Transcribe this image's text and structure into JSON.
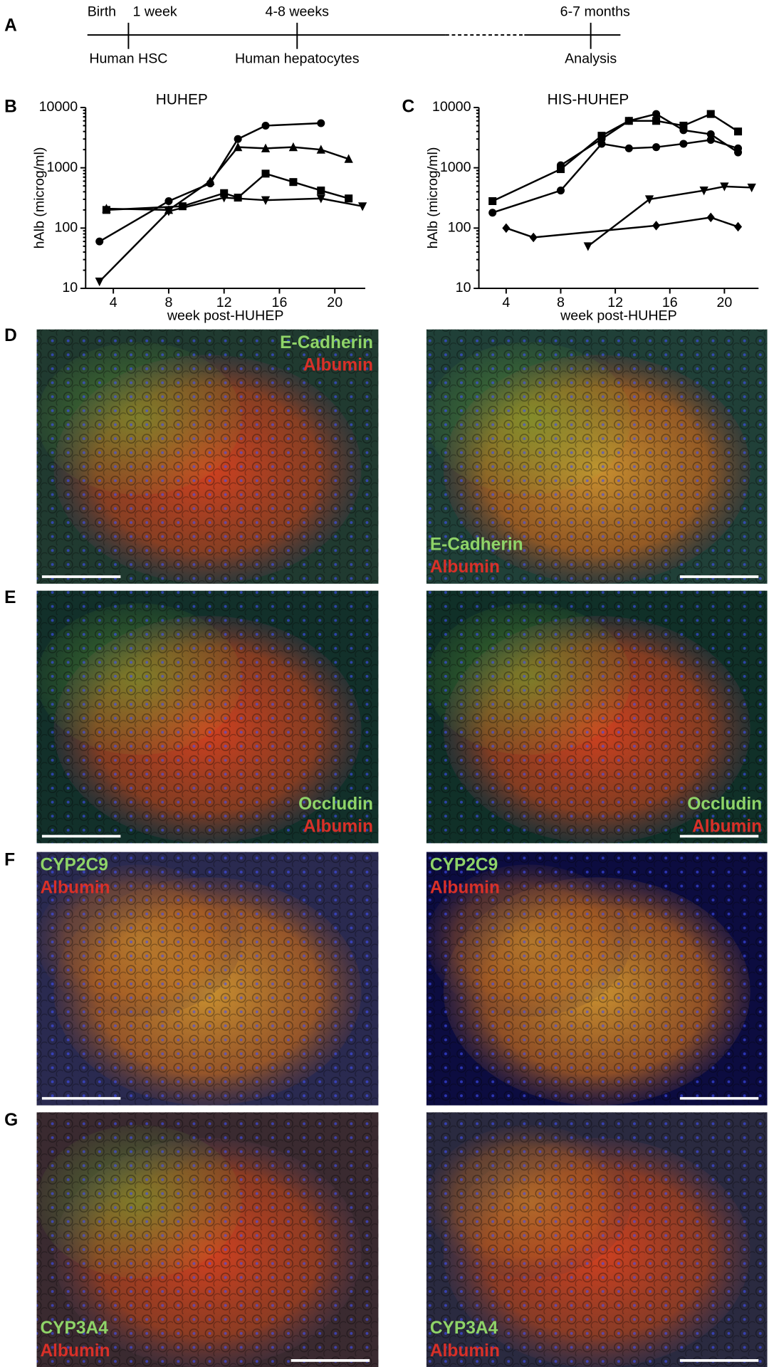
{
  "panel_labels": [
    "A",
    "B",
    "C",
    "D",
    "E",
    "F",
    "G"
  ],
  "timeline": {
    "above": [
      "Birth",
      "1 week",
      "4-8 weeks",
      "6-7 months"
    ],
    "below": [
      "Human HSC",
      "Human hepatocytes",
      "Analysis"
    ]
  },
  "chart_data": [
    {
      "type": "line",
      "title": "HUHEP",
      "x_label": "week post-HUHEP",
      "y_label": "hAlb (microg/ml)",
      "log_y": true,
      "xlim": [
        2,
        22.2
      ],
      "xticks": [
        4,
        8,
        12,
        16,
        20
      ],
      "ylim": [
        10,
        10000
      ],
      "yticks": [
        10,
        100,
        1000,
        10000
      ],
      "color": "#000000",
      "series": [
        {
          "marker": "circle",
          "x": [
            3,
            8,
            11,
            13,
            15,
            19
          ],
          "values": [
            60,
            280,
            550,
            3000,
            5000,
            5500
          ]
        },
        {
          "marker": "triangle",
          "x": [
            3.5,
            8,
            11,
            13,
            15,
            17,
            19,
            21
          ],
          "values": [
            210,
            200,
            600,
            2200,
            2100,
            2200,
            2000,
            1400
          ]
        },
        {
          "marker": "square",
          "x": [
            3.5,
            9,
            12,
            13,
            15,
            17,
            19,
            21
          ],
          "values": [
            200,
            230,
            380,
            320,
            800,
            580,
            420,
            310
          ]
        },
        {
          "marker": "triangle-down",
          "x": [
            3,
            8,
            12,
            15,
            19,
            22
          ],
          "values": [
            13,
            190,
            320,
            290,
            310,
            230
          ]
        }
      ]
    },
    {
      "type": "line",
      "title": "HIS-HUHEP",
      "x_label": "week post-HUHEP",
      "y_label": "hAlb (microg/ml)",
      "log_y": true,
      "xlim": [
        2,
        22.5
      ],
      "xticks": [
        4,
        8,
        12,
        16,
        20
      ],
      "ylim": [
        10,
        10000
      ],
      "yticks": [
        10,
        100,
        1000,
        10000
      ],
      "color": "#000000",
      "series": [
        {
          "marker": "square",
          "x": [
            3,
            8,
            11,
            13,
            15,
            17,
            19,
            21
          ],
          "values": [
            280,
            950,
            3400,
            6000,
            6000,
            5000,
            7800,
            4000
          ]
        },
        {
          "marker": "circle",
          "x": [
            8,
            11,
            13,
            15,
            17,
            19,
            21
          ],
          "values": [
            1100,
            3000,
            6000,
            7800,
            4200,
            3600,
            1800
          ]
        },
        {
          "marker": "circle",
          "x": [
            3,
            8,
            11,
            13,
            15,
            17,
            19,
            21
          ],
          "values": [
            180,
            420,
            2500,
            2100,
            2200,
            2500,
            2900,
            2100
          ]
        },
        {
          "marker": "triangle-down",
          "x": [
            10,
            14.5,
            18.5,
            20,
            22
          ],
          "values": [
            50,
            300,
            420,
            490,
            470
          ]
        },
        {
          "marker": "diamond",
          "x": [
            4,
            6,
            15,
            19,
            21
          ],
          "values": [
            100,
            70,
            110,
            150,
            105
          ]
        }
      ]
    }
  ],
  "micrographs": [
    {
      "images": [
        {
          "labels": [
            "E-Cadherin",
            "Albumin"
          ]
        },
        {
          "labels": [
            "E-Cadherin",
            "Albumin"
          ]
        }
      ]
    },
    {
      "images": [
        {
          "labels": [
            "Occludin",
            "Albumin"
          ]
        },
        {
          "labels": [
            "Occludin",
            "Albumin"
          ]
        }
      ]
    },
    {
      "images": [
        {
          "labels": [
            "CYP2C9",
            "Albumin"
          ]
        },
        {
          "labels": [
            "CYP2C9",
            "Albumin"
          ]
        }
      ]
    },
    {
      "images": [
        {
          "labels": [
            "CYP3A4",
            "Albumin"
          ]
        },
        {
          "labels": [
            "CYP3A4",
            "Albumin"
          ]
        }
      ]
    }
  ]
}
